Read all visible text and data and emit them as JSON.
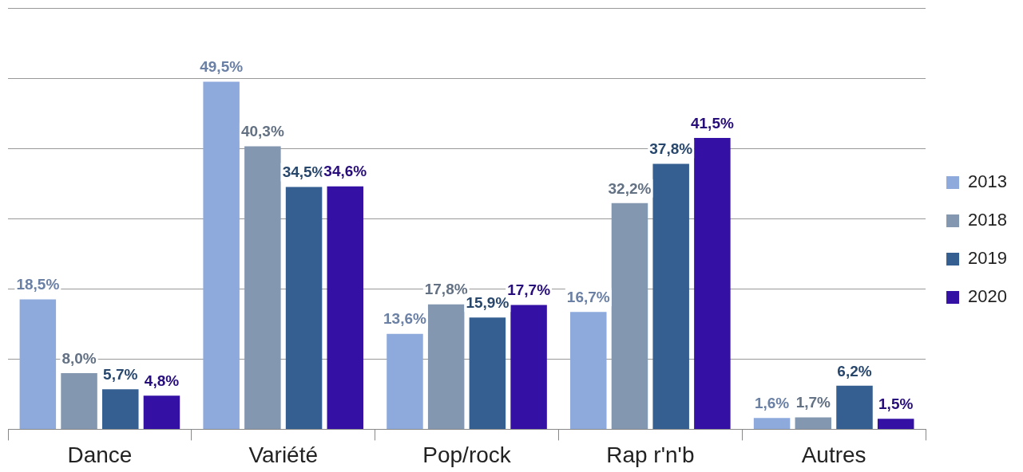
{
  "chart_data": {
    "type": "bar",
    "categories": [
      "Dance",
      "Variété",
      "Pop/rock",
      "Rap r'n'b",
      "Autres"
    ],
    "series": [
      {
        "name": "2013",
        "color": "#8eaadc",
        "values": [
          18.5,
          49.5,
          13.6,
          16.7,
          1.6
        ],
        "value_labels": [
          "18,5%",
          "49,5%",
          "13,6%",
          "16,7%",
          "1,6%"
        ]
      },
      {
        "name": "2018",
        "color": "#8497b0",
        "values": [
          8.0,
          40.3,
          17.8,
          32.2,
          1.7
        ],
        "value_labels": [
          "8,0%",
          "40,3%",
          "17,8%",
          "32,2%",
          "1,7%"
        ]
      },
      {
        "name": "2019",
        "color": "#355f91",
        "values": [
          5.7,
          34.5,
          15.9,
          37.8,
          6.2
        ],
        "value_labels": [
          "5,7%",
          "34,5%",
          "15,9%",
          "37,8%",
          "6,2%"
        ]
      },
      {
        "name": "2020",
        "color": "#3410a4",
        "values": [
          4.8,
          34.6,
          17.7,
          41.5,
          1.5
        ],
        "value_labels": [
          "4,8%",
          "34,6%",
          "17,7%",
          "41,5%",
          "1,5%"
        ]
      }
    ],
    "ylim": [
      0,
      60
    ],
    "yticks": [
      {
        "value": 0,
        "label": null
      },
      {
        "value": 10,
        "label": null
      },
      {
        "value": 20,
        "label": null
      },
      {
        "value": 30,
        "label": null
      },
      {
        "value": 40,
        "label": null
      },
      {
        "value": 50,
        "label": null
      },
      {
        "value": 60,
        "label": null
      }
    ],
    "tick_labels": "x",
    "grid": "y",
    "legend": "right"
  }
}
